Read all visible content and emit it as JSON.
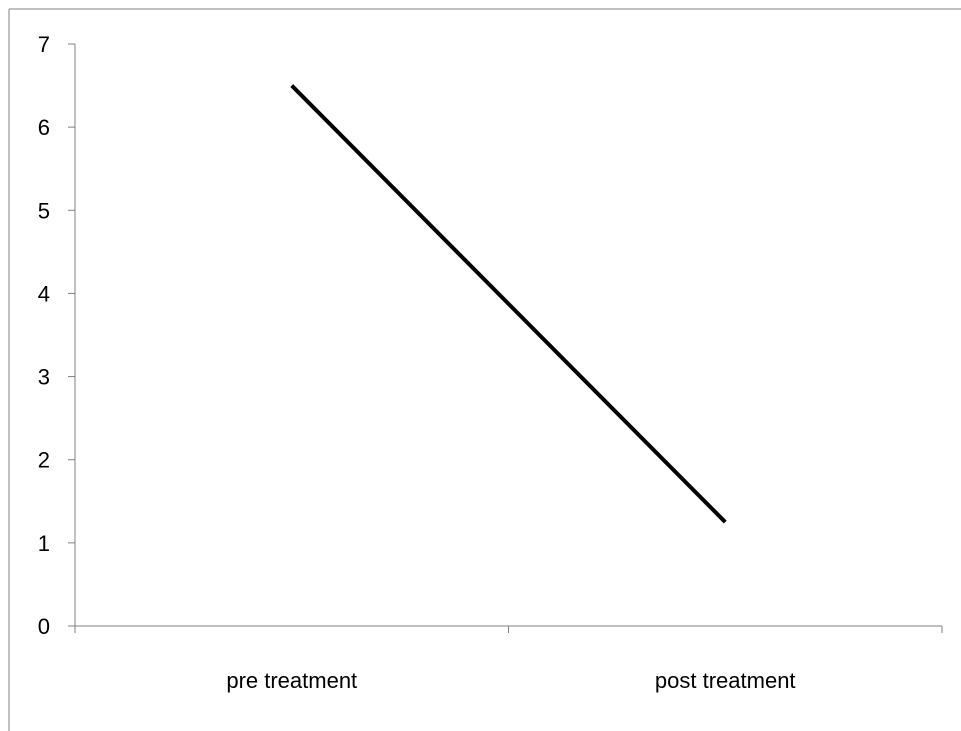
{
  "chart_data": {
    "type": "line",
    "categories": [
      "pre treatment",
      "post treatment"
    ],
    "series": [
      {
        "values": [
          6.5,
          1.25
        ]
      }
    ],
    "ylim": [
      0,
      7
    ],
    "yticks": [
      "0",
      "1",
      "2",
      "3",
      "4",
      "5",
      "6",
      "7"
    ],
    "grid": false,
    "legend": "none",
    "line_color": "#000000",
    "axis_color": "#808080"
  }
}
